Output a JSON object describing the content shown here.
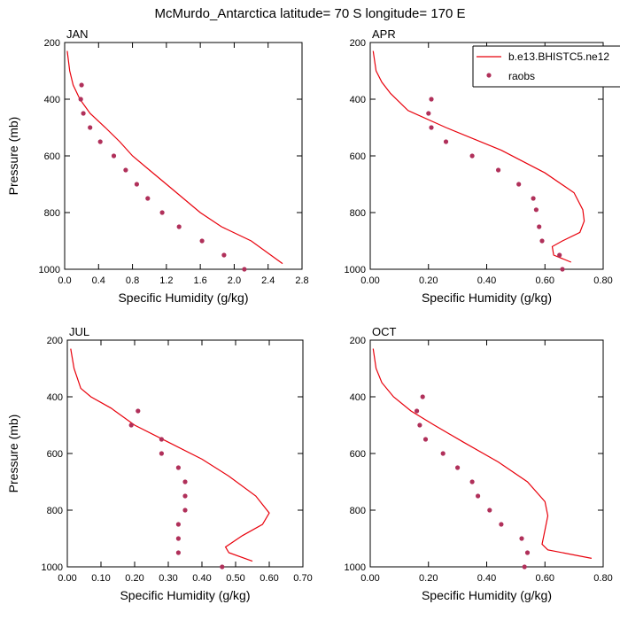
{
  "title": "McMurdo_Antarctica  latitude= 70 S longitude= 170 E",
  "legend": {
    "model_label": "b.e13.BHISTC5.ne12",
    "obs_label": "raobs",
    "model_color": "#e8000b",
    "obs_color": "#b0305a"
  },
  "chart_data": [
    {
      "type": "line",
      "panel": "JAN",
      "xlabel": "Specific Humidity (g/kg)",
      "ylabel": "Pressure (mb)",
      "xlim": [
        0,
        2.8
      ],
      "ylim": [
        1000,
        200
      ],
      "xticks": [
        "0.0",
        "0.4",
        "0.8",
        "1.2",
        "1.6",
        "2.0",
        "2.4",
        "2.8"
      ],
      "yticks": [
        "200",
        "400",
        "600",
        "800",
        "1000"
      ],
      "series": [
        {
          "name": "b.e13.BHISTC5.ne12",
          "kind": "line",
          "x": [
            0.03,
            0.06,
            0.1,
            0.18,
            0.3,
            0.48,
            0.65,
            0.8,
            1.0,
            1.2,
            1.4,
            1.6,
            1.85,
            2.2,
            2.57
          ],
          "y": [
            230,
            300,
            350,
            400,
            450,
            500,
            550,
            600,
            650,
            700,
            750,
            800,
            850,
            900,
            980
          ]
        },
        {
          "name": "raobs",
          "kind": "scatter",
          "x": [
            0.2,
            0.19,
            0.22,
            0.3,
            0.42,
            0.58,
            0.72,
            0.85,
            0.98,
            1.15,
            1.35,
            1.62,
            1.88,
            2.12
          ],
          "y": [
            350,
            400,
            450,
            500,
            550,
            600,
            650,
            700,
            750,
            800,
            850,
            900,
            950,
            1000
          ]
        }
      ]
    },
    {
      "type": "line",
      "panel": "APR",
      "xlabel": "Specific Humidity (g/kg)",
      "ylabel": "",
      "xlim": [
        0,
        0.8
      ],
      "ylim": [
        1000,
        200
      ],
      "xticks": [
        "0.00",
        "0.20",
        "0.40",
        "0.60",
        "0.80"
      ],
      "yticks": [
        "200",
        "400",
        "600",
        "800",
        "1000"
      ],
      "series": [
        {
          "name": "b.e13.BHISTC5.ne12",
          "kind": "line",
          "x": [
            0.01,
            0.02,
            0.04,
            0.07,
            0.13,
            0.26,
            0.45,
            0.6,
            0.7,
            0.73,
            0.735,
            0.72,
            0.66,
            0.625,
            0.63,
            0.69
          ],
          "y": [
            230,
            300,
            340,
            380,
            440,
            500,
            580,
            660,
            730,
            790,
            830,
            870,
            900,
            920,
            950,
            975
          ]
        },
        {
          "name": "raobs",
          "kind": "scatter",
          "x": [
            0.21,
            0.2,
            0.21,
            0.26,
            0.35,
            0.44,
            0.51,
            0.56,
            0.57,
            0.58,
            0.59,
            0.65,
            0.66
          ],
          "y": [
            400,
            450,
            500,
            550,
            600,
            650,
            700,
            750,
            790,
            850,
            900,
            950,
            1000
          ]
        }
      ]
    },
    {
      "type": "line",
      "panel": "JUL",
      "xlabel": "Specific Humidity (g/kg)",
      "ylabel": "Pressure (mb)",
      "xlim": [
        0,
        0.7
      ],
      "ylim": [
        1000,
        200
      ],
      "xticks": [
        "0.00",
        "0.10",
        "0.20",
        "0.30",
        "0.40",
        "0.50",
        "0.60",
        "0.70"
      ],
      "yticks": [
        "200",
        "400",
        "600",
        "800",
        "1000"
      ],
      "series": [
        {
          "name": "b.e13.BHISTC5.ne12",
          "kind": "line",
          "x": [
            0.01,
            0.02,
            0.04,
            0.07,
            0.13,
            0.2,
            0.3,
            0.4,
            0.48,
            0.56,
            0.6,
            0.58,
            0.52,
            0.47,
            0.48,
            0.55
          ],
          "y": [
            230,
            300,
            370,
            400,
            440,
            500,
            560,
            620,
            680,
            750,
            810,
            850,
            890,
            930,
            950,
            980
          ]
        },
        {
          "name": "raobs",
          "kind": "scatter",
          "x": [
            0.21,
            0.19,
            0.28,
            0.28,
            0.33,
            0.35,
            0.35,
            0.35,
            0.33,
            0.33,
            0.33,
            0.46
          ],
          "y": [
            450,
            500,
            550,
            600,
            650,
            700,
            750,
            800,
            850,
            900,
            950,
            1000
          ]
        }
      ]
    },
    {
      "type": "line",
      "panel": "OCT",
      "xlabel": "Specific Humidity (g/kg)",
      "ylabel": "",
      "xlim": [
        0,
        0.8
      ],
      "ylim": [
        1000,
        200
      ],
      "xticks": [
        "0.00",
        "0.20",
        "0.40",
        "0.60",
        "0.80"
      ],
      "yticks": [
        "200",
        "400",
        "600",
        "800",
        "1000"
      ],
      "series": [
        {
          "name": "b.e13.BHISTC5.ne12",
          "kind": "line",
          "x": [
            0.01,
            0.02,
            0.04,
            0.08,
            0.14,
            0.22,
            0.32,
            0.44,
            0.54,
            0.6,
            0.61,
            0.6,
            0.59,
            0.61,
            0.76
          ],
          "y": [
            230,
            300,
            350,
            400,
            450,
            500,
            560,
            630,
            700,
            770,
            820,
            870,
            920,
            940,
            970
          ]
        },
        {
          "name": "raobs",
          "kind": "scatter",
          "x": [
            0.18,
            0.16,
            0.17,
            0.19,
            0.25,
            0.3,
            0.35,
            0.37,
            0.41,
            0.45,
            0.52,
            0.54,
            0.53
          ],
          "y": [
            400,
            450,
            500,
            550,
            600,
            650,
            700,
            750,
            800,
            850,
            900,
            950,
            1000
          ]
        }
      ]
    }
  ]
}
